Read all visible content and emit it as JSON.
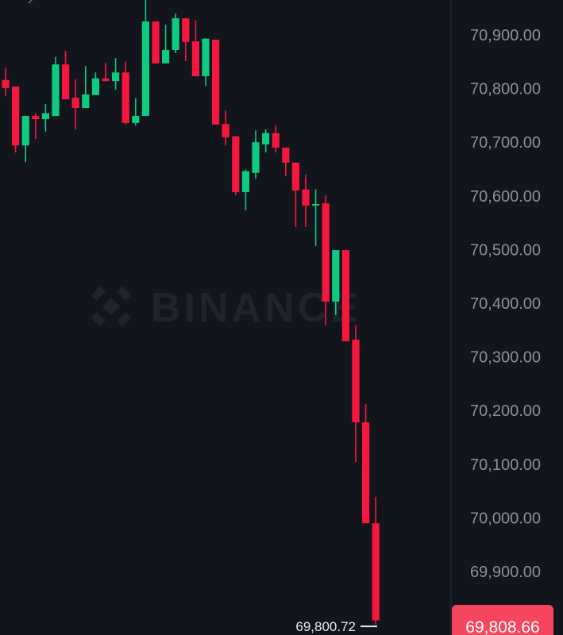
{
  "chart_data": {
    "type": "candlestick",
    "title": "",
    "watermark": "BINANCE",
    "xlabel": "",
    "ylabel": "",
    "ylim": [
      69780,
      70965
    ],
    "y_ticks": [
      70900,
      70800,
      70700,
      70600,
      70500,
      70400,
      70300,
      70200,
      70100,
      70000,
      69900
    ],
    "y_tick_labels": [
      "70,900.00",
      "70,800.00",
      "70,700.00",
      "70,600.00",
      "70,500.00",
      "70,400.00",
      "70,300.00",
      "70,200.00",
      "70,100.00",
      "70,000.00",
      "69,900.00"
    ],
    "grid": false,
    "colors": {
      "up": "#0ecb81",
      "down": "#f6173f",
      "background": "#12161c",
      "price_tag": "#f6465d"
    },
    "current_price_label": "69,808.66",
    "current_price": 69808.66,
    "low_marker_label": "69,800.72",
    "low_marker": 69800.72,
    "candles": [
      {
        "o": 70816,
        "h": 70839,
        "l": 70786,
        "c": 70801
      },
      {
        "o": 70804,
        "h": 70804,
        "l": 70681,
        "c": 70694
      },
      {
        "o": 70694,
        "h": 70749,
        "l": 70663,
        "c": 70749
      },
      {
        "o": 70749,
        "h": 70754,
        "l": 70706,
        "c": 70743
      },
      {
        "o": 70743,
        "h": 70771,
        "l": 70720,
        "c": 70754
      },
      {
        "o": 70749,
        "h": 70859,
        "l": 70749,
        "c": 70845
      },
      {
        "o": 70845,
        "h": 70870,
        "l": 70780,
        "c": 70780
      },
      {
        "o": 70783,
        "h": 70817,
        "l": 70724,
        "c": 70764
      },
      {
        "o": 70764,
        "h": 70842,
        "l": 70764,
        "c": 70789
      },
      {
        "o": 70788,
        "h": 70830,
        "l": 70788,
        "c": 70819
      },
      {
        "o": 70819,
        "h": 70848,
        "l": 70814,
        "c": 70814
      },
      {
        "o": 70814,
        "h": 70857,
        "l": 70798,
        "c": 70830
      },
      {
        "o": 70830,
        "h": 70850,
        "l": 70733,
        "c": 70736
      },
      {
        "o": 70736,
        "h": 70782,
        "l": 70731,
        "c": 70749
      },
      {
        "o": 70749,
        "h": 70965,
        "l": 70749,
        "c": 70925
      },
      {
        "o": 70925,
        "h": 70925,
        "l": 70847,
        "c": 70847
      },
      {
        "o": 70847,
        "h": 70919,
        "l": 70847,
        "c": 70872
      },
      {
        "o": 70872,
        "h": 70940,
        "l": 70866,
        "c": 70931
      },
      {
        "o": 70931,
        "h": 70931,
        "l": 70851,
        "c": 70887
      },
      {
        "o": 70888,
        "h": 70927,
        "l": 70823,
        "c": 70823
      },
      {
        "o": 70823,
        "h": 70894,
        "l": 70805,
        "c": 70893
      },
      {
        "o": 70891,
        "h": 70891,
        "l": 70733,
        "c": 70733
      },
      {
        "o": 70734,
        "h": 70759,
        "l": 70694,
        "c": 70709
      },
      {
        "o": 70711,
        "h": 70711,
        "l": 70601,
        "c": 70607
      },
      {
        "o": 70607,
        "h": 70649,
        "l": 70573,
        "c": 70646
      },
      {
        "o": 70643,
        "h": 70722,
        "l": 70632,
        "c": 70700
      },
      {
        "o": 70696,
        "h": 70724,
        "l": 70681,
        "c": 70717
      },
      {
        "o": 70717,
        "h": 70731,
        "l": 70681,
        "c": 70690
      },
      {
        "o": 70690,
        "h": 70690,
        "l": 70637,
        "c": 70662
      },
      {
        "o": 70662,
        "h": 70662,
        "l": 70542,
        "c": 70610
      },
      {
        "o": 70612,
        "h": 70640,
        "l": 70542,
        "c": 70582
      },
      {
        "o": 70582,
        "h": 70612,
        "l": 70507,
        "c": 70585
      },
      {
        "o": 70586,
        "h": 70601,
        "l": 70359,
        "c": 70403
      },
      {
        "o": 70403,
        "h": 70499,
        "l": 70378,
        "c": 70499
      },
      {
        "o": 70499,
        "h": 70499,
        "l": 70329,
        "c": 70329
      },
      {
        "o": 70332,
        "h": 70359,
        "l": 70104,
        "c": 70178
      },
      {
        "o": 70178,
        "h": 70212,
        "l": 69990,
        "c": 69990
      },
      {
        "o": 69990,
        "h": 70039,
        "l": 69801,
        "c": 69809
      }
    ]
  }
}
